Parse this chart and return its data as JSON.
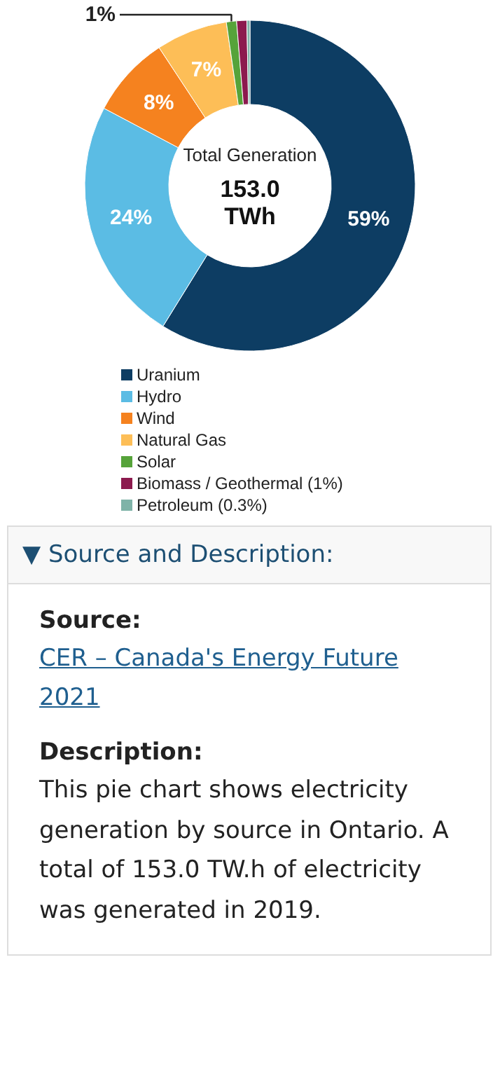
{
  "chart_data": {
    "type": "donut",
    "title": "Total Generation",
    "subtitle": "153.0 TWh",
    "categories": [
      "Uranium",
      "Hydro",
      "Wind",
      "Natural Gas",
      "Solar",
      "Biomass / Geothermal (1%)",
      "Petroleum (0.3%)"
    ],
    "values": [
      59,
      24,
      8,
      7,
      1,
      1,
      0.3
    ],
    "colors": [
      "#0d3d63",
      "#5bbce4",
      "#f5821f",
      "#fdbe57",
      "#56a33a",
      "#8c1a4e",
      "#7fb3a8"
    ],
    "value_labels": [
      "59%",
      "24%",
      "8%",
      "7%",
      "1%",
      null,
      null
    ],
    "legend": "bottom",
    "annotations": [
      "▼ Source and Description:",
      "Source:",
      "CER – Canada's Energy Future 2021",
      "Description:",
      "This pie chart shows electricity generation by source in Ontario. A total of 153.0 TW.h of electricity was generated in 2019."
    ]
  }
}
